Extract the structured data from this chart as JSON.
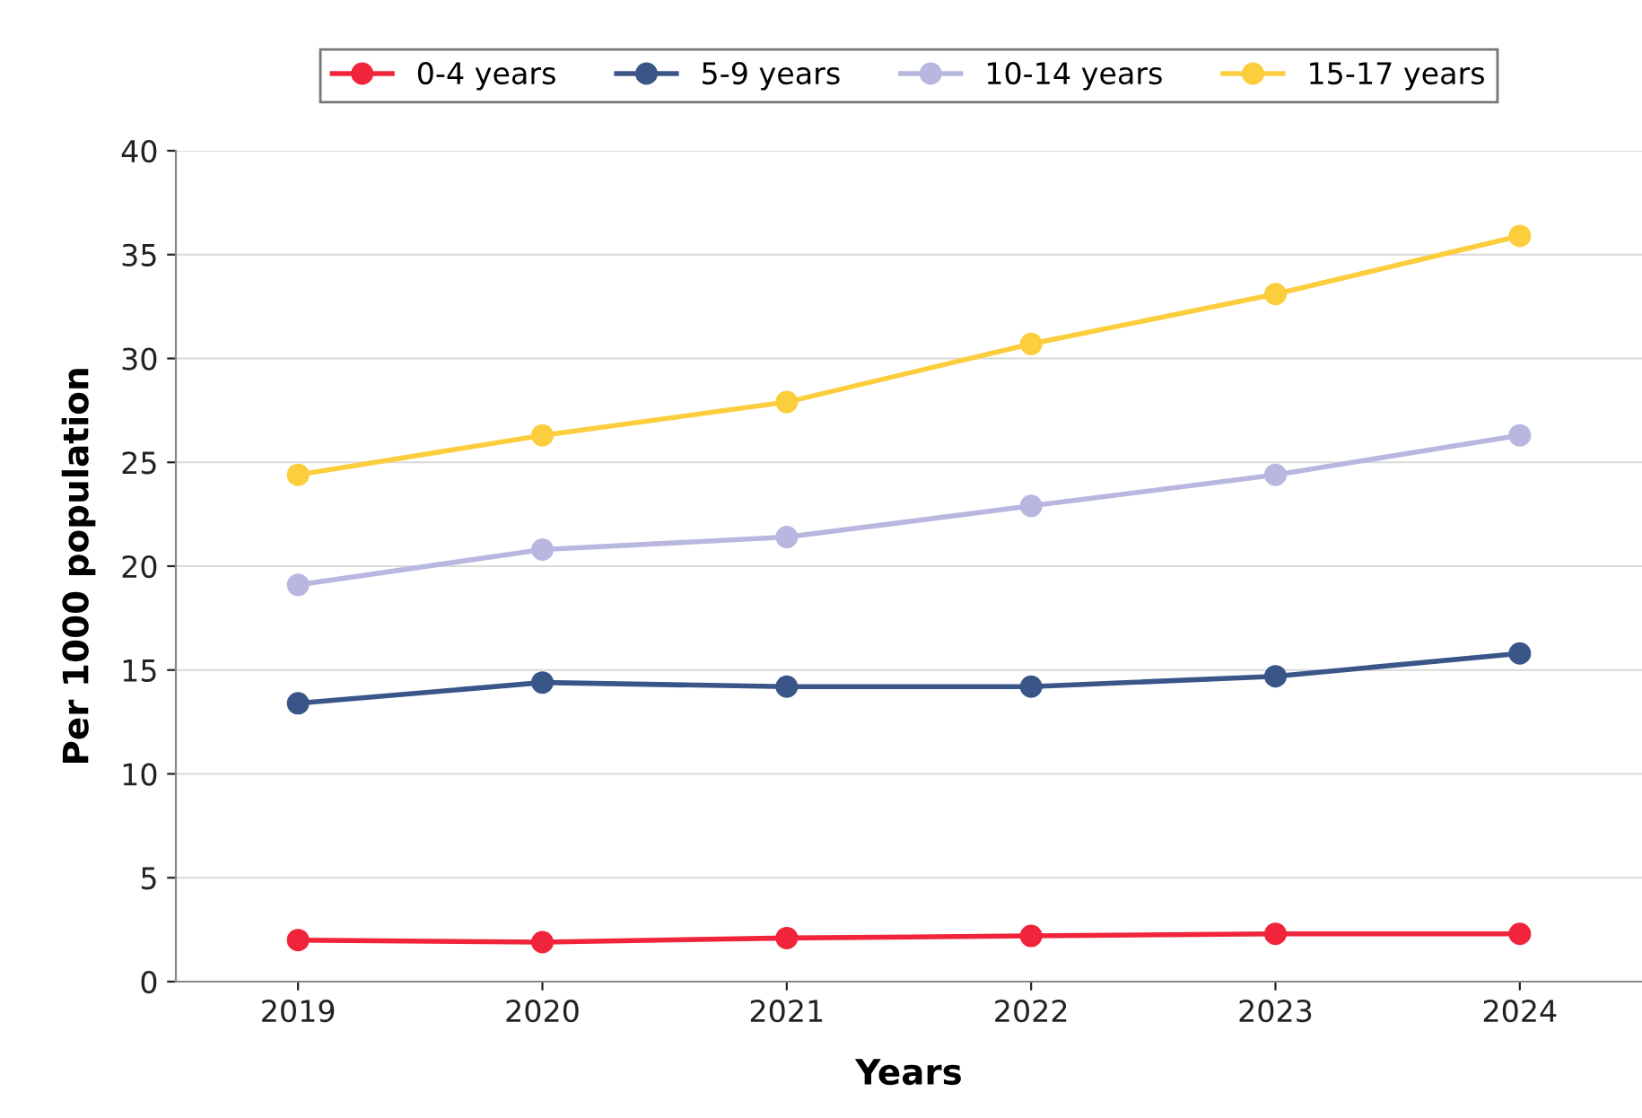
{
  "chart_data": {
    "type": "line",
    "xlabel": "Years",
    "ylabel": "Per 1000 population",
    "categories": [
      "2019",
      "2020",
      "2021",
      "2022",
      "2023",
      "2024"
    ],
    "series": [
      {
        "name": "0-4 years",
        "color": "#f0243a",
        "values": [
          2.0,
          1.9,
          2.1,
          2.2,
          2.3,
          2.3
        ]
      },
      {
        "name": "5-9 years",
        "color": "#3a5688",
        "values": [
          13.4,
          14.4,
          14.2,
          14.2,
          14.7,
          15.8
        ]
      },
      {
        "name": "10-14 years",
        "color": "#b7b7e0",
        "values": [
          19.1,
          20.8,
          21.4,
          22.9,
          24.4,
          26.3
        ]
      },
      {
        "name": "15-17 years",
        "color": "#fccd3c",
        "values": [
          24.4,
          26.3,
          27.9,
          30.7,
          33.1,
          35.9
        ]
      }
    ],
    "ylim": [
      0,
      40
    ],
    "yticks": [
      0,
      5,
      10,
      15,
      20,
      25,
      30,
      35,
      40
    ],
    "grid": "y",
    "legend": "top",
    "marker": "circle",
    "line_style": "solid"
  }
}
